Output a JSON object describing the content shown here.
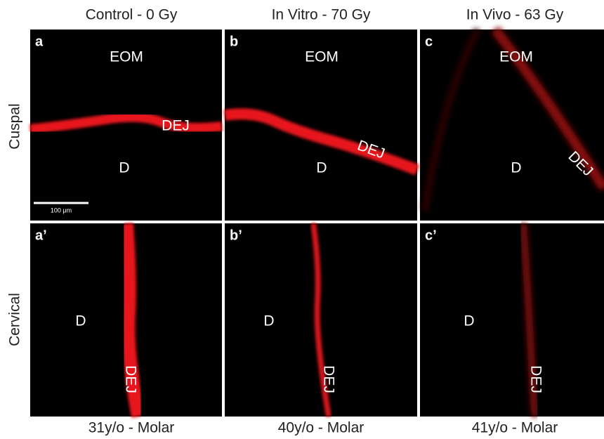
{
  "columns": [
    {
      "header": "Control - 0 Gy",
      "footer": "31y/o - Molar"
    },
    {
      "header": "In Vitro - 70 Gy",
      "footer": "40y/o - Molar"
    },
    {
      "header": "In Vivo - 63 Gy",
      "footer": "41y/o - Molar"
    }
  ],
  "rows": [
    {
      "label": "Cuspal"
    },
    {
      "label": "Cervical"
    }
  ],
  "panels": [
    {
      "letter": "a",
      "labels": [
        "EOM",
        "DEJ",
        "D"
      ],
      "scale_bar": "100 μm"
    },
    {
      "letter": "b",
      "labels": [
        "EOM",
        "DEJ",
        "D"
      ]
    },
    {
      "letter": "c",
      "labels": [
        "EOM",
        "DEJ",
        "D"
      ]
    },
    {
      "letter": "a’",
      "labels": [
        "D",
        "DEJ"
      ]
    },
    {
      "letter": "b’",
      "labels": [
        "D",
        "DEJ"
      ]
    },
    {
      "letter": "c’",
      "labels": [
        "D",
        "DEJ"
      ]
    }
  ]
}
